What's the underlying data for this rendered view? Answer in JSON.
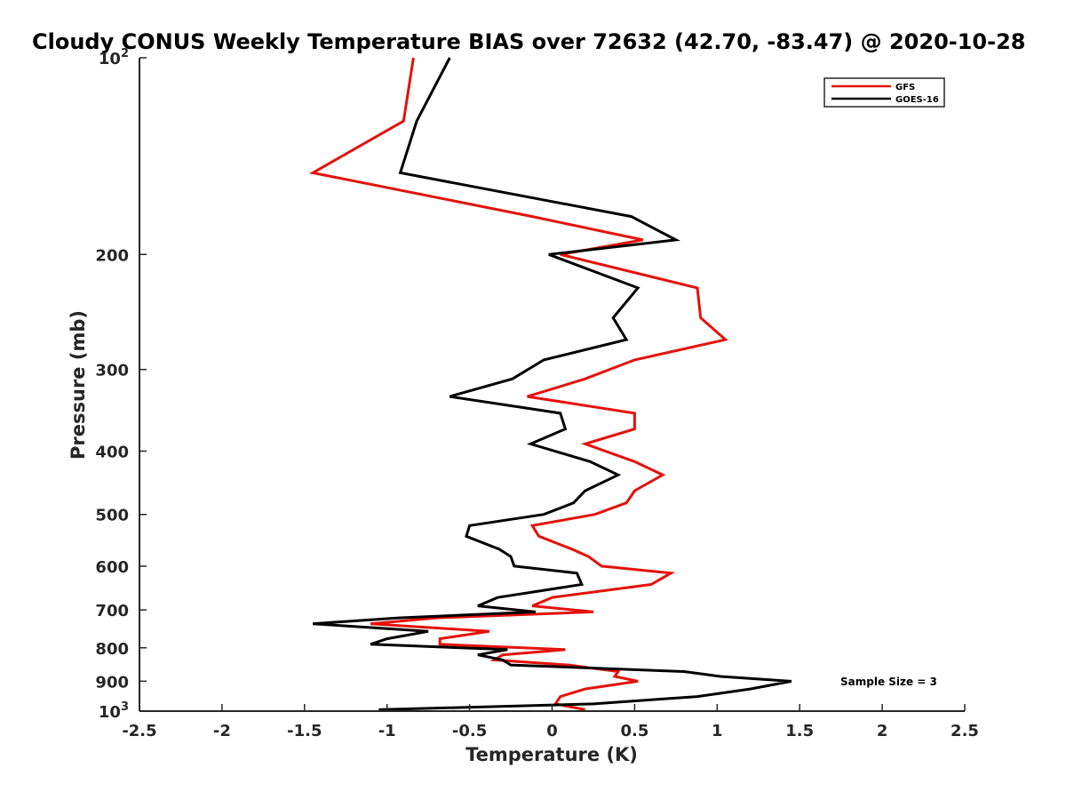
{
  "chart_data": {
    "type": "line",
    "title": "Cloudy CONUS Weekly Temperature BIAS over 72632 (42.70, -83.47) @ 2020-10-28",
    "xlabel": "Temperature (K)",
    "ylabel": "Pressure (mb)",
    "xlim": [
      -2.5,
      2.5
    ],
    "ylim": [
      100,
      1000
    ],
    "y_scale": "log",
    "y_reversed": true,
    "grid": false,
    "legend_position": "top-right",
    "x_ticks": [
      "-2.5",
      "-2",
      "-1.5",
      "-1",
      "-0.5",
      "0",
      "0.5",
      "1",
      "1.5",
      "2",
      "2.5"
    ],
    "y_ticks": [
      {
        "value": 100,
        "label": "10",
        "sup": "2"
      },
      {
        "value": 200,
        "label": "200",
        "sup": ""
      },
      {
        "value": 300,
        "label": "300",
        "sup": ""
      },
      {
        "value": 400,
        "label": "400",
        "sup": ""
      },
      {
        "value": 500,
        "label": "500",
        "sup": ""
      },
      {
        "value": 600,
        "label": "600",
        "sup": ""
      },
      {
        "value": 700,
        "label": "700",
        "sup": ""
      },
      {
        "value": 800,
        "label": "800",
        "sup": ""
      },
      {
        "value": 900,
        "label": "900",
        "sup": ""
      },
      {
        "value": 1000,
        "label": "10",
        "sup": "3"
      }
    ],
    "series": [
      {
        "name": "GFS",
        "color": "#e3120b",
        "points": [
          [
            -0.84,
            100
          ],
          [
            -0.9,
            125
          ],
          [
            -1.45,
            150
          ],
          [
            -0.12,
            175
          ],
          [
            0.55,
            190
          ],
          [
            0.05,
            200
          ],
          [
            0.88,
            225
          ],
          [
            0.9,
            250
          ],
          [
            1.05,
            270
          ],
          [
            0.5,
            290
          ],
          [
            0.2,
            310
          ],
          [
            -0.15,
            330
          ],
          [
            0.5,
            350
          ],
          [
            0.5,
            370
          ],
          [
            0.2,
            390
          ],
          [
            0.5,
            415
          ],
          [
            0.67,
            435
          ],
          [
            0.5,
            460
          ],
          [
            0.45,
            480
          ],
          [
            0.26,
            500
          ],
          [
            -0.12,
            520
          ],
          [
            -0.08,
            540
          ],
          [
            0.12,
            565
          ],
          [
            0.22,
            580
          ],
          [
            0.3,
            600
          ],
          [
            0.72,
            615
          ],
          [
            0.6,
            640
          ],
          [
            0.0,
            670
          ],
          [
            -0.12,
            690
          ],
          [
            0.25,
            705
          ],
          [
            -0.7,
            720
          ],
          [
            -1.1,
            735
          ],
          [
            -0.38,
            755
          ],
          [
            -0.68,
            775
          ],
          [
            -0.68,
            790
          ],
          [
            0.08,
            805
          ],
          [
            -0.3,
            820
          ],
          [
            -0.35,
            835
          ],
          [
            0.1,
            850
          ],
          [
            0.4,
            870
          ],
          [
            0.38,
            885
          ],
          [
            0.52,
            900
          ],
          [
            0.2,
            925
          ],
          [
            0.05,
            950
          ],
          [
            0.02,
            975
          ],
          [
            0.2,
            995
          ]
        ]
      },
      {
        "name": "GOES-16",
        "color": "#000000",
        "points": [
          [
            -0.62,
            100
          ],
          [
            -0.82,
            125
          ],
          [
            -0.92,
            150
          ],
          [
            0.48,
            175
          ],
          [
            0.75,
            190
          ],
          [
            -0.02,
            200
          ],
          [
            0.52,
            225
          ],
          [
            0.37,
            250
          ],
          [
            0.45,
            270
          ],
          [
            -0.05,
            290
          ],
          [
            -0.24,
            310
          ],
          [
            -0.62,
            330
          ],
          [
            0.05,
            350
          ],
          [
            0.08,
            370
          ],
          [
            -0.13,
            390
          ],
          [
            0.23,
            415
          ],
          [
            0.4,
            435
          ],
          [
            0.2,
            460
          ],
          [
            0.13,
            480
          ],
          [
            -0.05,
            500
          ],
          [
            -0.5,
            520
          ],
          [
            -0.52,
            540
          ],
          [
            -0.32,
            565
          ],
          [
            -0.25,
            580
          ],
          [
            -0.23,
            600
          ],
          [
            0.15,
            615
          ],
          [
            0.18,
            640
          ],
          [
            -0.33,
            670
          ],
          [
            -0.45,
            690
          ],
          [
            -0.1,
            705
          ],
          [
            -0.93,
            720
          ],
          [
            -1.45,
            735
          ],
          [
            -0.75,
            755
          ],
          [
            -1.0,
            775
          ],
          [
            -1.1,
            790
          ],
          [
            -0.27,
            805
          ],
          [
            -0.45,
            820
          ],
          [
            -0.3,
            835
          ],
          [
            -0.25,
            850
          ],
          [
            0.8,
            870
          ],
          [
            1.02,
            885
          ],
          [
            1.45,
            900
          ],
          [
            1.2,
            925
          ],
          [
            0.88,
            950
          ],
          [
            0.25,
            975
          ],
          [
            -1.05,
            995
          ]
        ]
      }
    ],
    "legend": [
      {
        "name": "GFS",
        "color": "#e3120b"
      },
      {
        "name": "GOES-16",
        "color": "#000000"
      }
    ],
    "annotations": [
      {
        "text": "Sample Size = 3",
        "position": "bottom-right"
      }
    ]
  }
}
